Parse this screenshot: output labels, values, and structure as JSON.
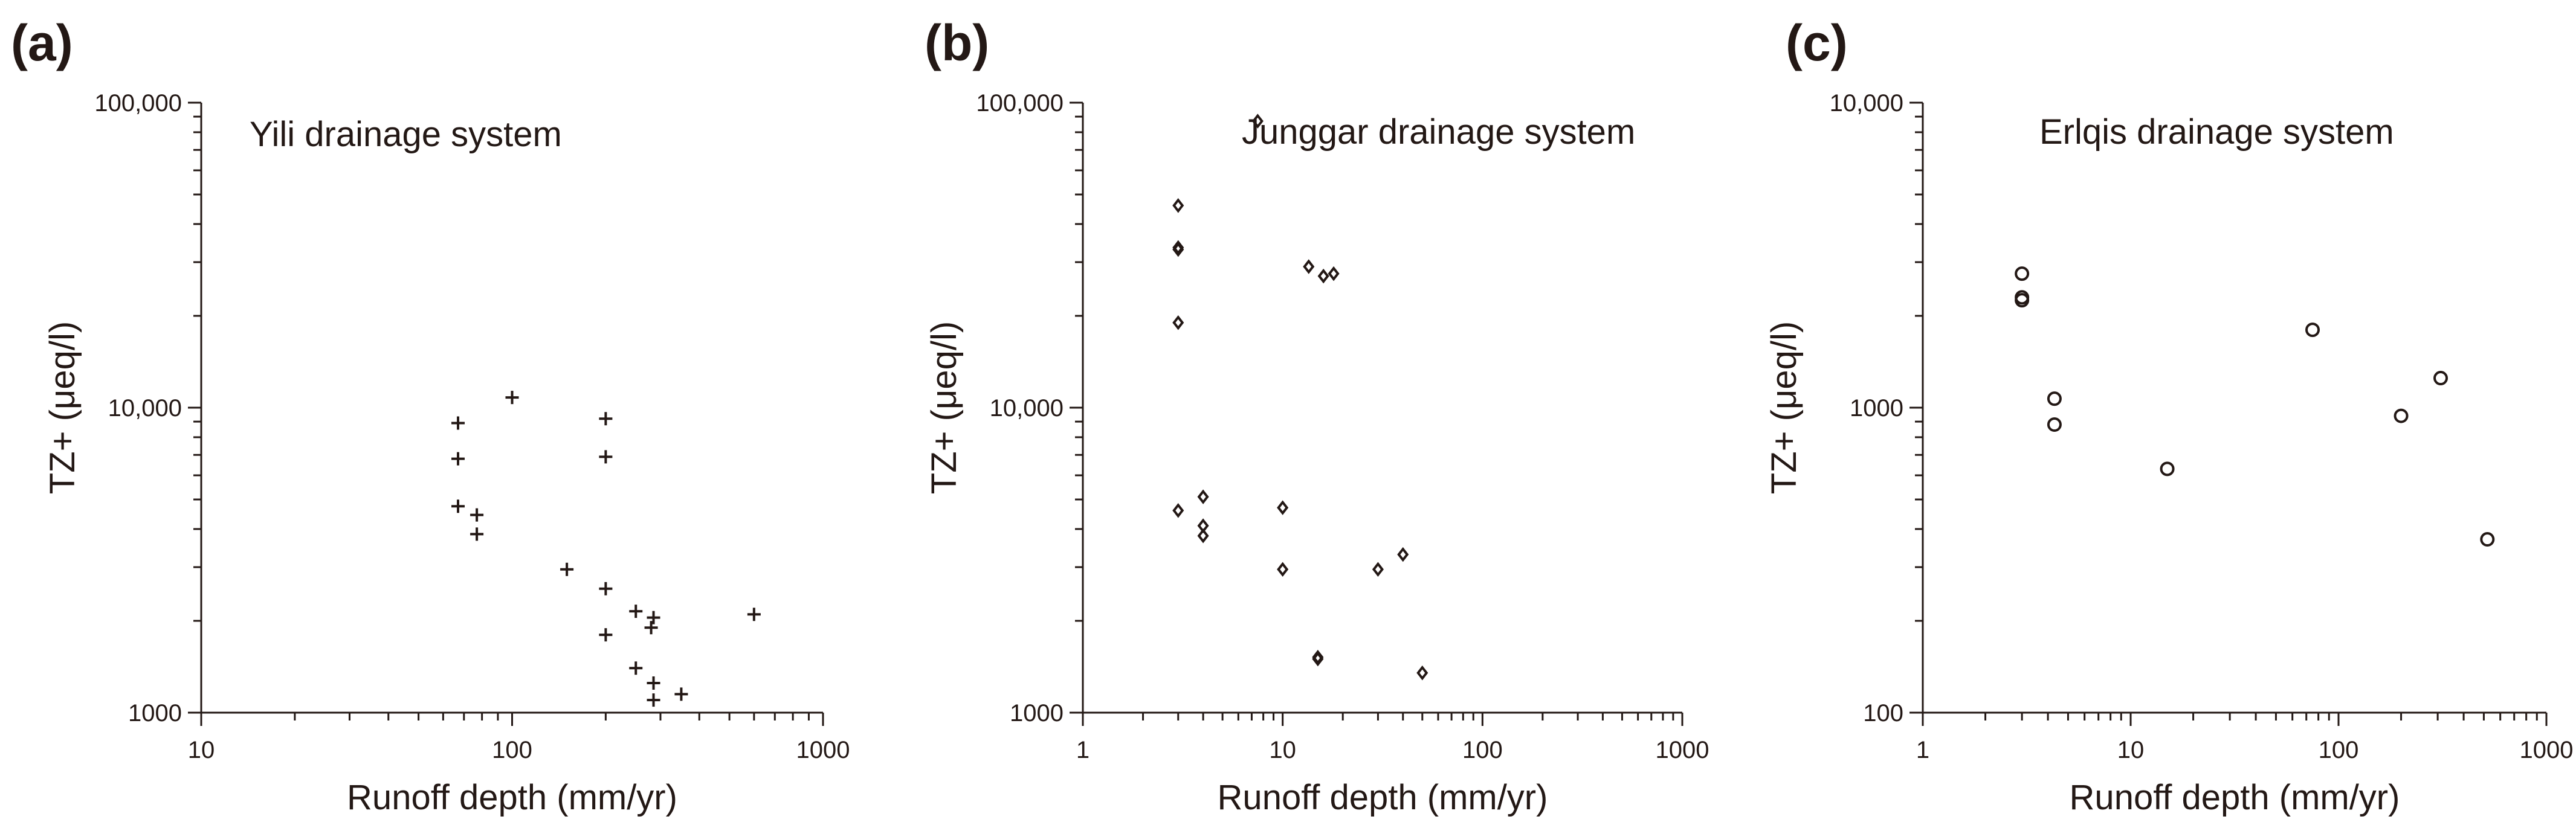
{
  "chart_data": [
    {
      "type": "scatter",
      "panel_label": "(a)",
      "title": "Yili drainage system",
      "xlabel": "Runoff depth (mm/yr)",
      "ylabel": "TZ+ (μeq/l)",
      "xscale": "log",
      "yscale": "log",
      "xlim": [
        10,
        1000
      ],
      "ylim": [
        1000,
        100000
      ],
      "xticks": [
        10,
        100,
        1000
      ],
      "xtick_labels": [
        "10",
        "100",
        "1000"
      ],
      "yticks": [
        1000,
        10000,
        100000
      ],
      "ytick_labels": [
        "1000",
        "10,000",
        "100,000"
      ],
      "marker": "plus",
      "series": [
        {
          "name": "Yili",
          "x": [
            67,
            67,
            67,
            77,
            77,
            100,
            150,
            200,
            200,
            200,
            200,
            250,
            250,
            280,
            285,
            285,
            285,
            350,
            600
          ],
          "y": [
            8900,
            6800,
            4750,
            4450,
            3850,
            10800,
            2950,
            9200,
            6900,
            2550,
            1800,
            2150,
            1400,
            1900,
            2050,
            1250,
            1100,
            1150,
            2100
          ]
        }
      ]
    },
    {
      "type": "scatter",
      "panel_label": "(b)",
      "title": "Junggar drainage system",
      "xlabel": "Runoff depth (mm/yr)",
      "ylabel": "TZ+ (μeq/l)",
      "xscale": "log",
      "yscale": "log",
      "xlim": [
        1,
        1000
      ],
      "ylim": [
        1000,
        100000
      ],
      "xticks": [
        1,
        10,
        100,
        1000
      ],
      "xtick_labels": [
        "1",
        "10",
        "100",
        "1000"
      ],
      "yticks": [
        1000,
        10000,
        100000
      ],
      "ytick_labels": [
        "1000",
        "10,000",
        "100,000"
      ],
      "marker": "diamond",
      "series": [
        {
          "name": "Junggar",
          "x": [
            7.5,
            3,
            3,
            3,
            3,
            3,
            4,
            4,
            4,
            10,
            10,
            13.5,
            16,
            18,
            15,
            15,
            30,
            40,
            50
          ],
          "y": [
            87000,
            46000,
            33500,
            33000,
            19000,
            4600,
            5100,
            4100,
            3800,
            4700,
            2950,
            29000,
            27000,
            27500,
            1500,
            1520,
            2950,
            3300,
            1350
          ]
        }
      ]
    },
    {
      "type": "scatter",
      "panel_label": "(c)",
      "title": "Erlqis drainage system",
      "xlabel": "Runoff  depth (mm/yr)",
      "ylabel": "TZ+ (μeq/l)",
      "xscale": "log",
      "yscale": "log",
      "xlim": [
        1,
        1000
      ],
      "ylim": [
        100,
        10000
      ],
      "xticks": [
        1,
        10,
        100,
        1000
      ],
      "xtick_labels": [
        "1",
        "10",
        "100",
        "1000"
      ],
      "yticks": [
        100,
        1000,
        10000
      ],
      "ytick_labels": [
        "100",
        "1000",
        "10,000"
      ],
      "marker": "circle",
      "series": [
        {
          "name": "Erlqis",
          "x": [
            3,
            3,
            3,
            4.3,
            4.3,
            15,
            75,
            200,
            310,
            520
          ],
          "y": [
            2750,
            2300,
            2250,
            1070,
            880,
            630,
            1800,
            940,
            1250,
            370
          ]
        }
      ]
    }
  ]
}
